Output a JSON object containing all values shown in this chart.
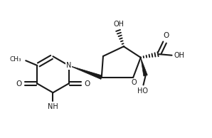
{
  "background": "#ffffff",
  "line_color": "#1a1a1a",
  "line_width": 1.5,
  "font_size": 7.0,
  "figsize": [
    2.98,
    1.94
  ],
  "dpi": 100,
  "xlim": [
    0,
    9.5
  ],
  "ylim": [
    0,
    6.2
  ]
}
